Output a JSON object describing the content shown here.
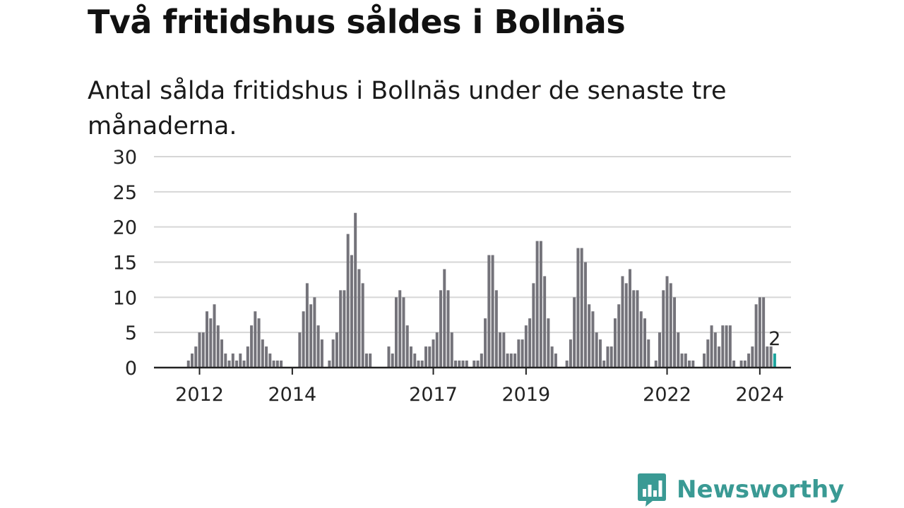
{
  "header": {
    "title": "Två fritidshus såldes i Bollnäs",
    "subtitle": "Antal sålda fritidshus i Bollnäs under de senaste tre månaderna."
  },
  "brand": {
    "name": "Newsworthy",
    "logo_icon": "bar-chart-speech-bubble-icon",
    "color": "#3a9a94"
  },
  "chart_data": {
    "type": "bar",
    "title": "Två fritidshus såldes i Bollnäs",
    "subtitle": "Antal sålda fritidshus i Bollnäs under de senaste tre månaderna.",
    "xlabel": "",
    "ylabel": "",
    "ylim": [
      0,
      30
    ],
    "y_ticks": [
      "0",
      "5",
      "10",
      "15",
      "20",
      "25",
      "30"
    ],
    "x_ticks": [
      "2012",
      "2014",
      "2017",
      "2019",
      "2022",
      "2024"
    ],
    "x_tick_index": [
      4,
      29,
      67,
      92,
      130,
      155
    ],
    "grid": true,
    "legend": "none",
    "bar_color": "#74737a",
    "highlight_color": "#1ba39c",
    "highlight_label": "2",
    "period": "monthly, ~2011-09 to 2025-03",
    "values": [
      0,
      1,
      2,
      3,
      5,
      5,
      8,
      7,
      9,
      6,
      4,
      2,
      1,
      2,
      1,
      2,
      1,
      3,
      6,
      8,
      7,
      4,
      3,
      2,
      1,
      1,
      1,
      0,
      0,
      0,
      0,
      5,
      8,
      12,
      9,
      10,
      6,
      4,
      0,
      1,
      4,
      5,
      11,
      11,
      19,
      16,
      22,
      14,
      12,
      2,
      2,
      0,
      0,
      0,
      0,
      3,
      2,
      10,
      11,
      10,
      6,
      3,
      2,
      1,
      1,
      3,
      3,
      4,
      5,
      11,
      14,
      11,
      5,
      1,
      1,
      1,
      1,
      0,
      1,
      1,
      2,
      7,
      16,
      16,
      11,
      5,
      5,
      2,
      2,
      2,
      4,
      4,
      6,
      7,
      12,
      18,
      18,
      13,
      7,
      3,
      2,
      0,
      0,
      1,
      4,
      10,
      17,
      17,
      15,
      9,
      8,
      5,
      4,
      1,
      3,
      3,
      7,
      9,
      13,
      12,
      14,
      11,
      11,
      8,
      7,
      4,
      0,
      1,
      5,
      11,
      13,
      12,
      10,
      5,
      2,
      2,
      1,
      1,
      0,
      0,
      2,
      4,
      6,
      5,
      3,
      6,
      6,
      6,
      1,
      0,
      1,
      1,
      2,
      3,
      9,
      10,
      10,
      3,
      3,
      2
    ]
  }
}
